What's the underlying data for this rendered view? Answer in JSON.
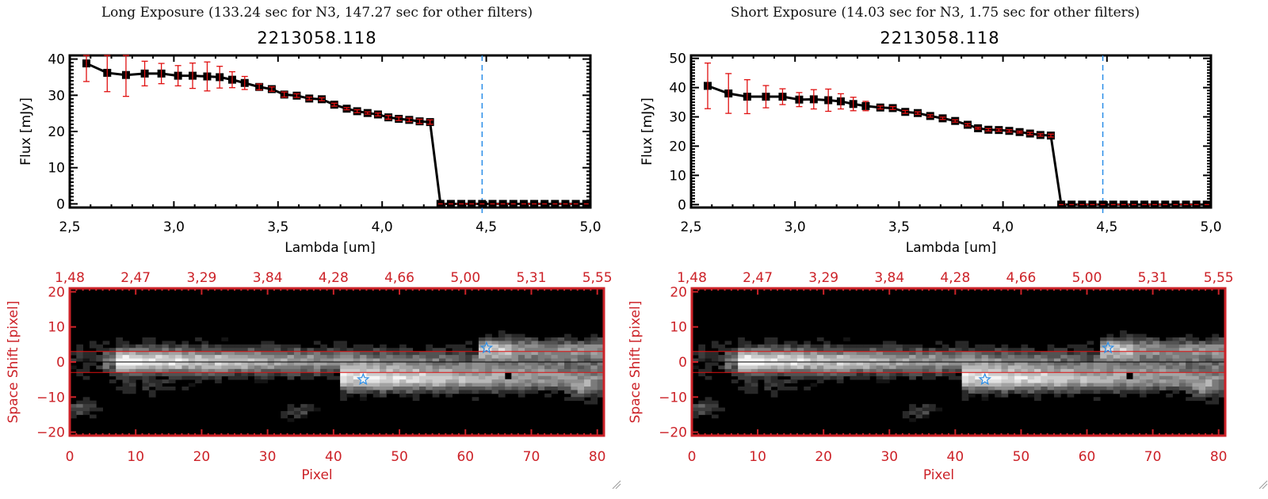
{
  "panels": [
    {
      "id": "long",
      "heading": "Long Exposure (133.24 sec for N3, 147.27 sec for other filters)",
      "object_id": "2213058.118"
    },
    {
      "id": "short",
      "heading": "Short Exposure (14.03 sec for N3, 1.75 sec for other filters)",
      "object_id": "2213058.118"
    }
  ],
  "colors": {
    "spectrum_line": "#000000",
    "error_bar": "#e01010",
    "marker_line": "#2a8ee8",
    "zero_line": "#e01010",
    "image_axis": "#cc2228",
    "aperture_line": "#e01010",
    "star_marker": "#2a8ee8"
  },
  "chart_data": [
    {
      "type": "line",
      "panel": "long",
      "title": "2213058.118",
      "xlabel": "Lambda [um]",
      "ylabel": "Flux [mJy]",
      "xlim": [
        2.5,
        5.0
      ],
      "ylim": [
        -1,
        41
      ],
      "xticks": [
        "2.5",
        "3.0",
        "3.5",
        "4.0",
        "4.5",
        "5.0"
      ],
      "yticks": [
        "0",
        "10",
        "20",
        "30",
        "40"
      ],
      "vline_x": 4.48,
      "series": [
        {
          "name": "flux",
          "x": [
            2.58,
            2.68,
            2.77,
            2.86,
            2.94,
            3.02,
            3.09,
            3.16,
            3.22,
            3.28,
            3.34,
            3.41,
            3.47,
            3.53,
            3.59,
            3.65,
            3.71,
            3.77,
            3.83,
            3.88,
            3.93,
            3.98,
            4.03,
            4.08,
            4.13,
            4.18,
            4.23,
            4.28,
            4.33,
            4.38,
            4.43,
            4.48,
            4.53,
            4.58,
            4.63,
            4.68,
            4.73,
            4.78,
            4.83,
            4.88,
            4.93,
            4.98
          ],
          "y": [
            38.8,
            36.2,
            35.6,
            36.0,
            36.0,
            35.4,
            35.4,
            35.2,
            35.0,
            34.3,
            33.4,
            32.3,
            31.7,
            30.2,
            29.9,
            29.1,
            28.9,
            27.4,
            26.3,
            25.6,
            25.1,
            24.7,
            23.9,
            23.5,
            23.2,
            22.8,
            22.6,
            0,
            0,
            0,
            0,
            0,
            0,
            0,
            0,
            0,
            0,
            0,
            0,
            0,
            0,
            0
          ],
          "err": [
            5.0,
            5.2,
            5.9,
            3.4,
            2.8,
            2.8,
            3.5,
            4.0,
            3.0,
            2.2,
            1.8,
            0.8,
            0.6,
            0.7,
            0.5,
            0.4,
            0.4,
            0.4,
            0.3,
            0.4,
            0.3,
            0.4,
            0.5,
            0.5,
            0.5,
            0.6,
            0.6,
            0,
            0,
            0,
            0,
            0,
            0,
            0,
            0,
            0,
            0,
            0,
            0,
            0,
            0,
            0
          ]
        }
      ]
    },
    {
      "type": "line",
      "panel": "short",
      "title": "2213058.118",
      "xlabel": "Lambda [um]",
      "ylabel": "Flux [mJy]",
      "xlim": [
        2.5,
        5.0
      ],
      "ylim": [
        -1,
        51
      ],
      "xticks": [
        "2.5",
        "3.0",
        "3.5",
        "4.0",
        "4.5",
        "5.0"
      ],
      "yticks": [
        "0",
        "10",
        "20",
        "30",
        "40",
        "50"
      ],
      "vline_x": 4.48,
      "series": [
        {
          "name": "flux",
          "x": [
            2.58,
            2.68,
            2.77,
            2.86,
            2.94,
            3.02,
            3.09,
            3.16,
            3.22,
            3.28,
            3.34,
            3.41,
            3.47,
            3.53,
            3.59,
            3.65,
            3.71,
            3.77,
            3.83,
            3.88,
            3.93,
            3.98,
            4.03,
            4.08,
            4.13,
            4.18,
            4.23,
            4.28,
            4.33,
            4.38,
            4.43,
            4.48,
            4.53,
            4.58,
            4.63,
            4.68,
            4.73,
            4.78,
            4.83,
            4.88,
            4.93,
            4.98
          ],
          "y": [
            40.6,
            38.0,
            36.9,
            36.9,
            36.9,
            35.9,
            36.0,
            35.7,
            35.3,
            34.4,
            33.7,
            33.2,
            33.0,
            31.7,
            31.3,
            30.3,
            29.5,
            28.6,
            27.3,
            26.1,
            25.6,
            25.5,
            25.2,
            24.8,
            24.3,
            23.8,
            23.6,
            0,
            0,
            0,
            0,
            0,
            0,
            0,
            0,
            0,
            0,
            0,
            0,
            0,
            0,
            0
          ],
          "err": [
            7.8,
            6.8,
            5.8,
            3.8,
            2.7,
            2.4,
            3.3,
            3.8,
            2.6,
            2.3,
            1.6,
            0.5,
            0.5,
            0.5,
            0.4,
            0.4,
            0.4,
            0.4,
            0.4,
            0.3,
            0.4,
            0.4,
            0.4,
            0.3,
            0.4,
            0.4,
            0.5,
            0,
            0,
            0,
            0,
            0,
            0,
            0,
            0,
            0,
            0,
            0,
            0,
            0,
            0,
            0
          ]
        }
      ]
    },
    {
      "type": "heatmap",
      "panel": "long",
      "xlabel": "Pixel",
      "ylabel": "Space Shift [pixel]",
      "xlim": [
        0,
        81
      ],
      "ylim": [
        -21,
        21
      ],
      "xticks": [
        "0",
        "10",
        "20",
        "30",
        "40",
        "50",
        "60",
        "70",
        "80"
      ],
      "yticks": [
        "20",
        "10",
        "0",
        "-10",
        "-20"
      ],
      "top_xticks": [
        "1.48",
        "2.47",
        "3.29",
        "3.84",
        "4.28",
        "4.66",
        "5.00",
        "5.31",
        "5.55"
      ],
      "aperture_lines_y": [
        3,
        -3
      ],
      "center_line_y": 0,
      "stars": [
        {
          "x": 44.5,
          "y": -5
        },
        {
          "x": 63.2,
          "y": 4
        }
      ],
      "masked_pixel": {
        "x": 66.5,
        "y": -4
      }
    },
    {
      "type": "heatmap",
      "panel": "short",
      "xlabel": "Pixel",
      "ylabel": "Space Shift [pixel]",
      "xlim": [
        0,
        81
      ],
      "ylim": [
        -21,
        21
      ],
      "xticks": [
        "0",
        "10",
        "20",
        "30",
        "40",
        "50",
        "60",
        "70",
        "80"
      ],
      "yticks": [
        "20",
        "10",
        "0",
        "-10",
        "-20"
      ],
      "top_xticks": [
        "1.48",
        "2.47",
        "3.29",
        "3.84",
        "4.28",
        "4.66",
        "5.00",
        "5.31",
        "5.55"
      ],
      "aperture_lines_y": [
        3,
        -3
      ],
      "center_line_y": 0,
      "stars": [
        {
          "x": 44.5,
          "y": -5
        },
        {
          "x": 63.2,
          "y": 4
        }
      ],
      "masked_pixel": {
        "x": 66.5,
        "y": -4
      }
    }
  ]
}
